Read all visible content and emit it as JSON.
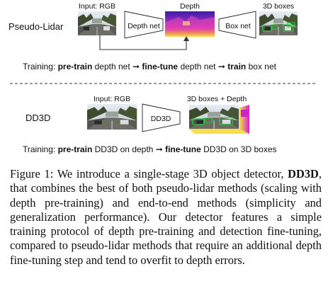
{
  "figure": {
    "top_panel": {
      "row_label": "Pseudo-Lidar",
      "input_label": "Input: RGB",
      "depth_label": "Depth",
      "output_label": "3D boxes",
      "depth_net_label": "Depth net",
      "box_net_label": "Box net",
      "training": {
        "prefix": "Training:",
        "step1_bold": "pre-train",
        "step1_rest": "depth net",
        "step2_bold": "fine-tune",
        "step2_rest": "depth net",
        "step3_bold": "train",
        "step3_rest": "box net",
        "arrow": "➞"
      }
    },
    "bottom_panel": {
      "row_label": "DD3D",
      "input_label": "Input: RGB",
      "output_label": "3D boxes + Depth",
      "net_label": "DD3D",
      "training": {
        "prefix": "Training:",
        "step1_bold": "pre-train",
        "step1_rest": "DD3D on depth",
        "step2_bold": "fine-tune",
        "step2_rest": "DD3D on 3D boxes",
        "arrow": "➞"
      }
    }
  },
  "caption": {
    "figure_label": "Figure 1:",
    "text_a": "We introduce a single-stage 3D object detector,",
    "model_name": "DD3D",
    "text_b": ", that combines the best of both pseudo-lidar methods (scaling with depth pre-training) and end-to-end methods (simplicity and generalization performance). Our detector features a simple training protocol of depth pre-training and detection fine-tuning, compared to pseudo-lidar methods that require an additional depth fine-tuning step and tend to overfit to depth errors."
  },
  "colors": {
    "sky": "#c9d3dc",
    "trees": "#3d4a2e",
    "road": "#6e6c67",
    "box_green": "#22cc33",
    "depth_magenta": "#d21fd0",
    "depth_yellow": "#f4e04a",
    "depth_purple": "#3b1da0"
  }
}
